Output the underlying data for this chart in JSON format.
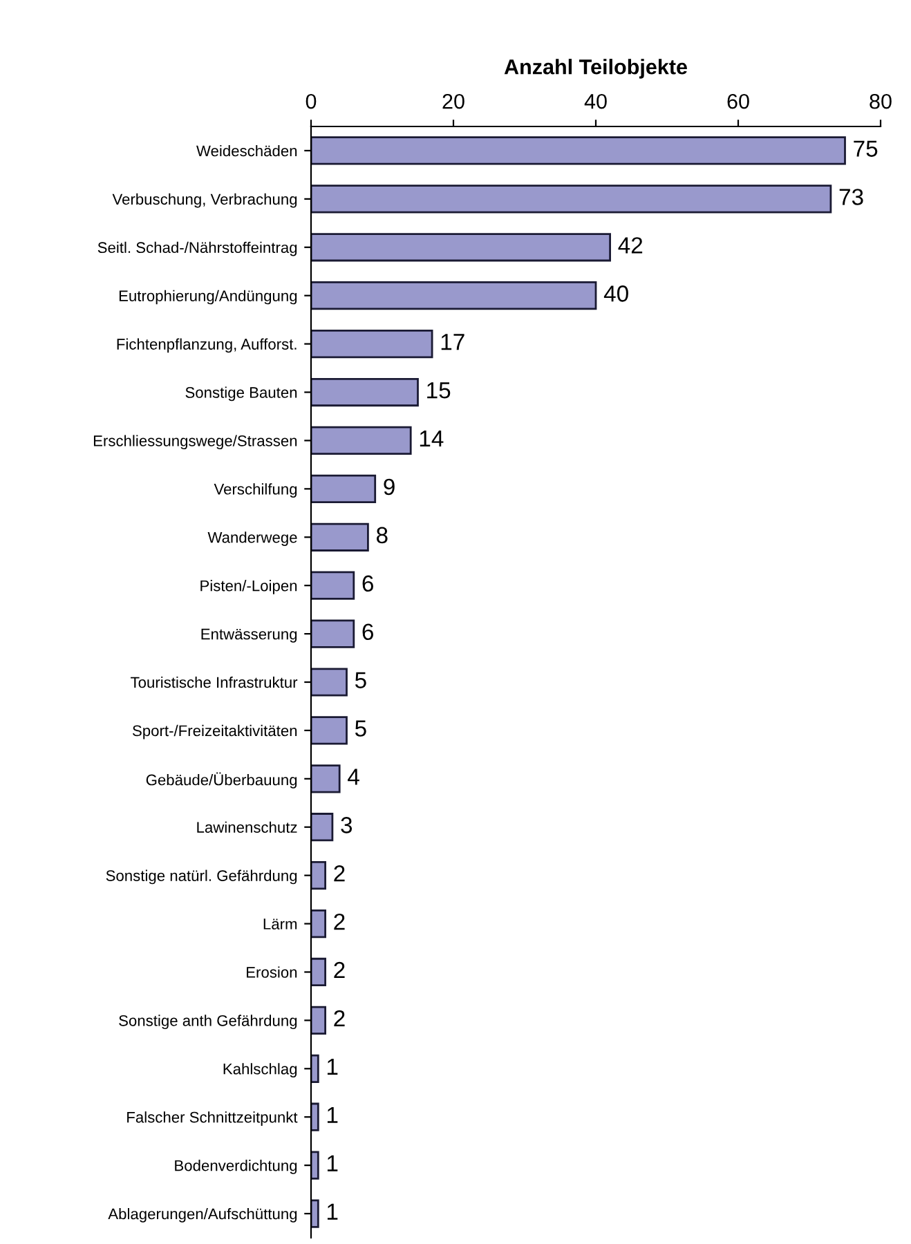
{
  "chart_data": {
    "type": "bar",
    "orientation": "horizontal",
    "xlabel": "Anzahl Teilobjekte",
    "categories": [
      "Weideschäden",
      "Verbuschung, Verbrachung",
      "Seitl. Schad-/Nährstoffeintrag",
      "Eutrophierung/Andüngung",
      "Fichtenpflanzung, Aufforst.",
      "Sonstige Bauten",
      "Erschliessungswege/Strassen",
      "Verschilfung",
      "Wanderwege",
      "Pisten/-Loipen",
      "Entwässerung",
      "Touristische Infrastruktur",
      "Sport-/Freizeitaktivitäten",
      "Gebäude/Überbauung",
      "Lawinenschutz",
      "Sonstige natürl. Gefährdung",
      "Lärm",
      "Erosion",
      "Sonstige anth Gefährdung",
      "Kahlschlag",
      "Falscher Schnittzeitpunkt",
      "Bodenverdichtung",
      "Ablagerungen/Aufschüttung"
    ],
    "values": [
      75,
      73,
      42,
      40,
      17,
      15,
      14,
      9,
      8,
      6,
      6,
      5,
      5,
      4,
      3,
      2,
      2,
      2,
      2,
      1,
      1,
      1,
      1
    ],
    "color": "#9999cc",
    "xlim": [
      0,
      80
    ],
    "xticks": [
      0,
      20,
      40,
      60,
      80
    ],
    "data_labels": true,
    "grid": false
  }
}
